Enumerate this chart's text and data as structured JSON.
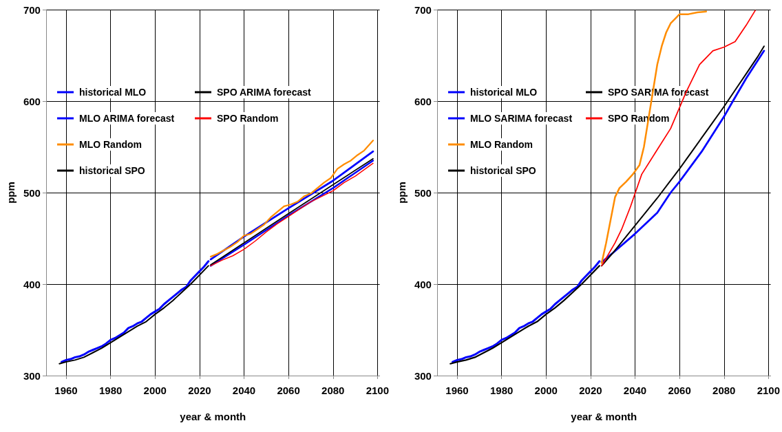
{
  "chart_data": [
    {
      "type": "line",
      "xlabel": "year & month",
      "ylabel": "ppm",
      "xlim": [
        1951,
        2101
      ],
      "xticks": [
        1960,
        1980,
        2000,
        2020,
        2040,
        2060,
        2080,
        2100
      ],
      "ylim": [
        300,
        700
      ],
      "yticks": [
        300,
        400,
        500,
        600,
        700
      ],
      "grid": true,
      "legend": "top left",
      "marker": "none",
      "line_style": "solid",
      "series": [
        {
          "name": "historical MLO",
          "color": "#0000ff",
          "x": [
            1958,
            1960,
            1962,
            1964,
            1966,
            1968,
            1970,
            1972,
            1974,
            1976,
            1978,
            1980,
            1982,
            1984,
            1986,
            1988,
            1990,
            1992,
            1994,
            1996,
            1998,
            2000,
            2002,
            2004,
            2006,
            2008,
            2010,
            2012,
            2014,
            2016,
            2018,
            2020,
            2022,
            2024
          ],
          "values": [
            315,
            317,
            318,
            320,
            321,
            323,
            326,
            328,
            330,
            332,
            335,
            339,
            341,
            344,
            347,
            352,
            354,
            357,
            359,
            363,
            367,
            370,
            373,
            378,
            382,
            386,
            390,
            394,
            397,
            404,
            409,
            414,
            419,
            425
          ]
        },
        {
          "name": "MLO ARIMA forecast",
          "color": "#0000ff",
          "x": [
            2025,
            2040,
            2060,
            2080,
            2098
          ],
          "values": [
            427,
            452,
            483,
            513,
            545
          ]
        },
        {
          "color": "#0000ff",
          "x": [
            2025,
            2040,
            2060,
            2080,
            2098
          ],
          "values": [
            420,
            443,
            475,
            505,
            535
          ]
        },
        {
          "name": "MLO Random",
          "color": "#ff8c00",
          "x": [
            2025,
            2028,
            2031,
            2034,
            2037,
            2040,
            2043,
            2046,
            2049,
            2052,
            2055,
            2058,
            2061,
            2064,
            2067,
            2070,
            2073,
            2076,
            2079,
            2082,
            2085,
            2088,
            2091,
            2094,
            2098
          ],
          "values": [
            430,
            433,
            437,
            441,
            446,
            453,
            455,
            460,
            465,
            473,
            479,
            485,
            487,
            490,
            496,
            499,
            505,
            511,
            516,
            526,
            531,
            535,
            541,
            546,
            557
          ]
        },
        {
          "name": "historical SPO",
          "color": "#000000",
          "x": [
            1957,
            1960,
            1964,
            1968,
            1972,
            1976,
            1980,
            1984,
            1988,
            1992,
            1996,
            2000,
            2004,
            2008,
            2012,
            2016,
            2020,
            2024
          ],
          "values": [
            313,
            315,
            317,
            320,
            325,
            330,
            336,
            342,
            348,
            354,
            359,
            367,
            374,
            382,
            391,
            400,
            410,
            420
          ]
        },
        {
          "name": "SPO ARIMA forecast",
          "color": "#000000",
          "x": [
            2025,
            2060,
            2098
          ],
          "values": [
            421,
            477,
            537
          ]
        },
        {
          "name": "SPO Random",
          "color": "#ff0000",
          "x": [
            2025,
            2030,
            2035,
            2040,
            2045,
            2050,
            2055,
            2060,
            2065,
            2070,
            2075,
            2080,
            2085,
            2090,
            2098
          ],
          "values": [
            420,
            426,
            431,
            438,
            447,
            457,
            466,
            474,
            482,
            490,
            496,
            502,
            511,
            518,
            532
          ]
        }
      ]
    },
    {
      "type": "line",
      "xlabel": "year & month",
      "ylabel": "ppm",
      "xlim": [
        1951,
        2101
      ],
      "xticks": [
        1960,
        1980,
        2000,
        2020,
        2040,
        2060,
        2080,
        2100
      ],
      "ylim": [
        300,
        700
      ],
      "yticks": [
        300,
        400,
        500,
        600,
        700
      ],
      "grid": true,
      "legend": "top left",
      "marker": "none",
      "line_style": "solid",
      "series": [
        {
          "name": "historical MLO",
          "color": "#0000ff",
          "x": [
            1958,
            1960,
            1962,
            1964,
            1966,
            1968,
            1970,
            1972,
            1974,
            1976,
            1978,
            1980,
            1982,
            1984,
            1986,
            1988,
            1990,
            1992,
            1994,
            1996,
            1998,
            2000,
            2002,
            2004,
            2006,
            2008,
            2010,
            2012,
            2014,
            2016,
            2018,
            2020,
            2022,
            2024
          ],
          "values": [
            315,
            317,
            318,
            320,
            321,
            323,
            326,
            328,
            330,
            332,
            335,
            339,
            341,
            344,
            347,
            352,
            354,
            357,
            359,
            363,
            367,
            370,
            373,
            378,
            382,
            386,
            390,
            394,
            397,
            404,
            409,
            414,
            419,
            425
          ]
        },
        {
          "name": "MLO SARIMA forecast",
          "color": "#0000ff",
          "x": [
            2025,
            2030,
            2040,
            2050,
            2056,
            2060,
            2070,
            2080,
            2084,
            2090,
            2098
          ],
          "values": [
            424,
            434,
            455,
            478,
            500,
            512,
            545,
            583,
            600,
            625,
            655
          ]
        },
        {
          "name": "MLO Random",
          "color": "#ff8c00",
          "x": [
            2025,
            2027,
            2029,
            2031,
            2033,
            2036,
            2039,
            2042,
            2044,
            2046,
            2048,
            2050,
            2052,
            2054,
            2056,
            2058,
            2060,
            2064,
            2068,
            2072
          ],
          "values": [
            423,
            445,
            470,
            495,
            505,
            512,
            520,
            530,
            550,
            580,
            610,
            640,
            660,
            675,
            685,
            690,
            695,
            695,
            697,
            698
          ]
        },
        {
          "name": "historical SPO",
          "color": "#000000",
          "x": [
            1957,
            1960,
            1964,
            1968,
            1972,
            1976,
            1980,
            1984,
            1988,
            1992,
            1996,
            2000,
            2004,
            2008,
            2012,
            2016,
            2020,
            2024
          ],
          "values": [
            313,
            315,
            317,
            320,
            325,
            330,
            336,
            342,
            348,
            354,
            359,
            367,
            374,
            382,
            391,
            400,
            410,
            420
          ]
        },
        {
          "name": "SPO SARIMA forecast",
          "color": "#000000",
          "x": [
            2025,
            2030,
            2035,
            2040,
            2045,
            2050,
            2055,
            2060,
            2065,
            2070,
            2075,
            2080,
            2085,
            2090,
            2095,
            2098
          ],
          "values": [
            420,
            434,
            449,
            464,
            479,
            494,
            510,
            526,
            543,
            560,
            577,
            594,
            612,
            630,
            648,
            660
          ]
        },
        {
          "name": "SPO Random",
          "color": "#ff0000",
          "x": [
            2025,
            2031,
            2034,
            2038,
            2043,
            2050,
            2056,
            2063,
            2069,
            2075,
            2080,
            2085,
            2090,
            2094
          ],
          "values": [
            420,
            445,
            460,
            485,
            520,
            547,
            570,
            610,
            640,
            655,
            659,
            665,
            683,
            699
          ]
        }
      ]
    }
  ]
}
